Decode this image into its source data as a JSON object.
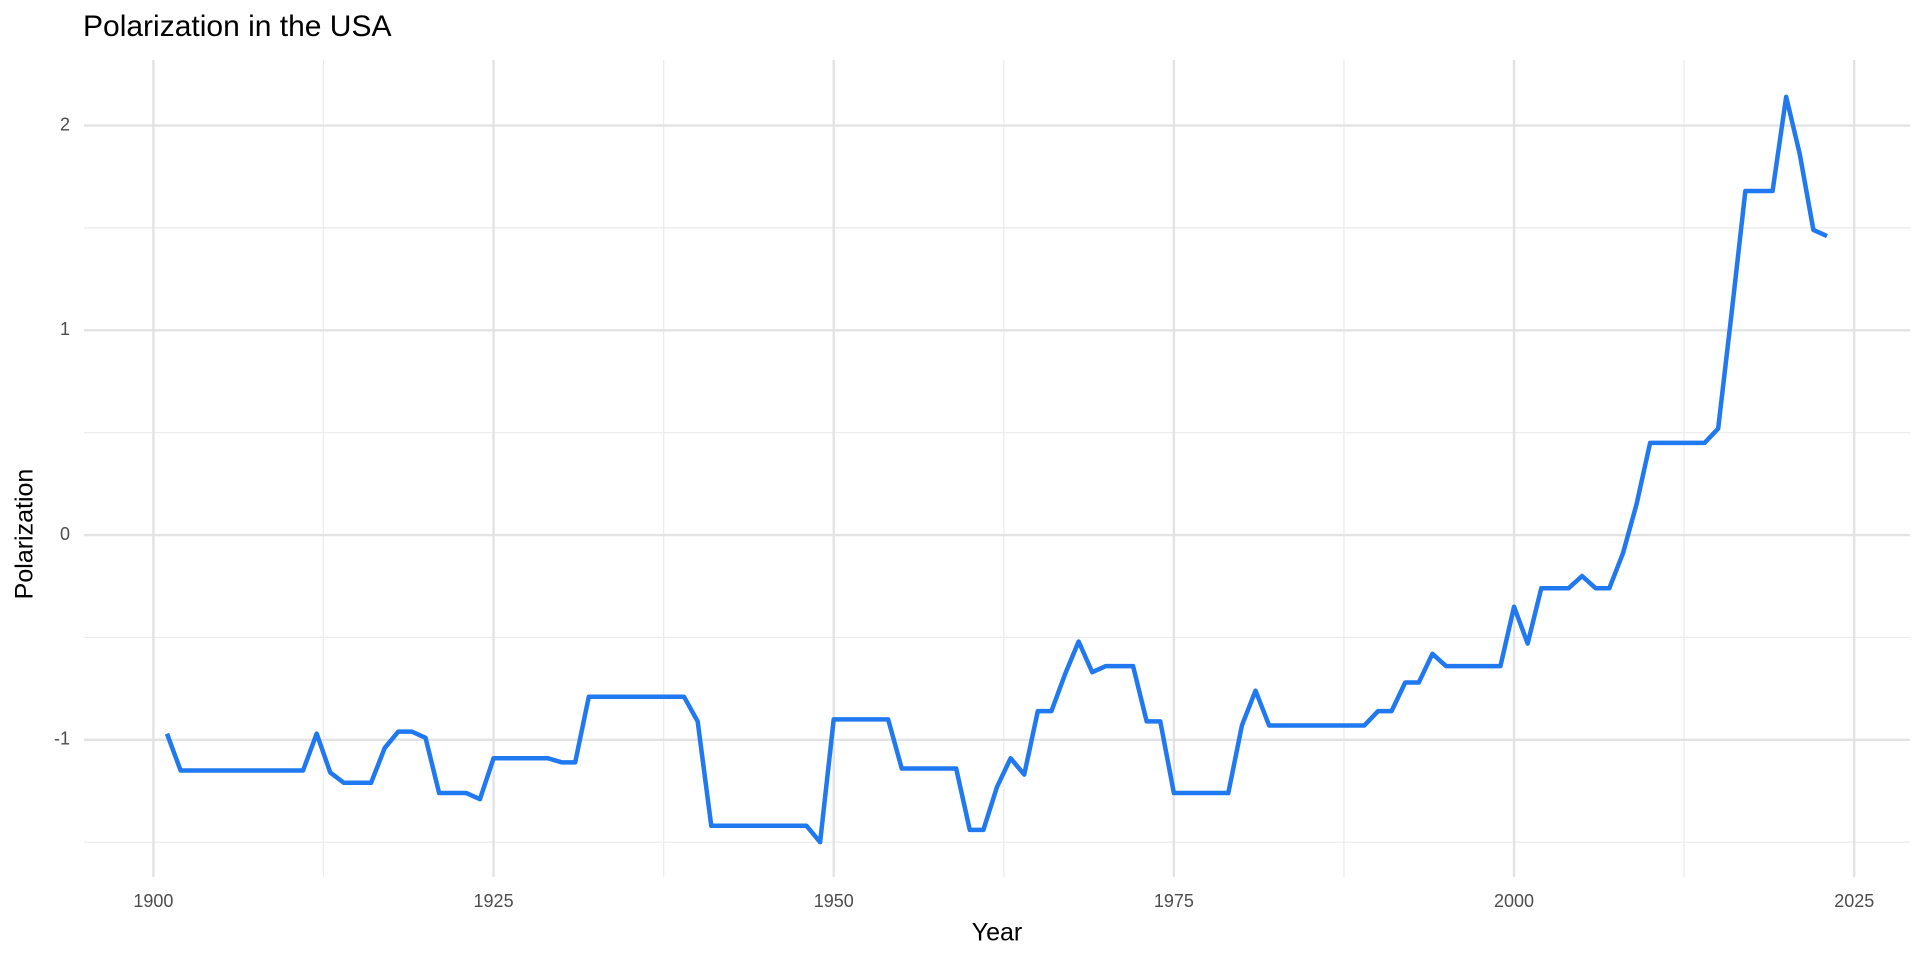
{
  "chart_data": {
    "type": "line",
    "title": "Polarization in the USA",
    "x_label": "Year",
    "y_label": "Polarization",
    "x": [
      1901,
      1902,
      1903,
      1904,
      1905,
      1906,
      1907,
      1908,
      1909,
      1910,
      1911,
      1912,
      1913,
      1914,
      1915,
      1916,
      1917,
      1918,
      1919,
      1920,
      1921,
      1922,
      1923,
      1924,
      1925,
      1926,
      1927,
      1928,
      1929,
      1930,
      1931,
      1932,
      1933,
      1934,
      1935,
      1936,
      1937,
      1938,
      1939,
      1940,
      1941,
      1942,
      1943,
      1944,
      1945,
      1946,
      1947,
      1948,
      1949,
      1950,
      1951,
      1952,
      1953,
      1954,
      1955,
      1956,
      1957,
      1958,
      1959,
      1960,
      1961,
      1962,
      1963,
      1964,
      1965,
      1966,
      1967,
      1968,
      1969,
      1970,
      1971,
      1972,
      1973,
      1974,
      1975,
      1976,
      1977,
      1978,
      1979,
      1980,
      1981,
      1982,
      1983,
      1984,
      1985,
      1986,
      1987,
      1988,
      1989,
      1990,
      1991,
      1992,
      1993,
      1994,
      1995,
      1996,
      1997,
      1998,
      1999,
      2000,
      2001,
      2002,
      2003,
      2004,
      2005,
      2006,
      2007,
      2008,
      2009,
      2010,
      2011,
      2012,
      2013,
      2014,
      2015,
      2016,
      2017,
      2018,
      2019,
      2020,
      2021,
      2022,
      2023
    ],
    "series": [
      {
        "name": "Polarization",
        "color": "#2079f0",
        "values": [
          -0.97,
          -1.15,
          -1.15,
          -1.15,
          -1.15,
          -1.15,
          -1.15,
          -1.15,
          -1.15,
          -1.15,
          -1.15,
          -0.97,
          -1.16,
          -1.21,
          -1.21,
          -1.21,
          -1.04,
          -0.96,
          -0.96,
          -0.99,
          -1.26,
          -1.26,
          -1.26,
          -1.29,
          -1.09,
          -1.09,
          -1.09,
          -1.09,
          -1.09,
          -1.11,
          -1.11,
          -0.79,
          -0.79,
          -0.79,
          -0.79,
          -0.79,
          -0.79,
          -0.79,
          -0.79,
          -0.91,
          -1.42,
          -1.42,
          -1.42,
          -1.42,
          -1.42,
          -1.42,
          -1.42,
          -1.42,
          -1.5,
          -0.9,
          -0.9,
          -0.9,
          -0.9,
          -0.9,
          -1.14,
          -1.14,
          -1.14,
          -1.14,
          -1.14,
          -1.44,
          -1.44,
          -1.23,
          -1.09,
          -1.17,
          -0.86,
          -0.86,
          -0.68,
          -0.52,
          -0.67,
          -0.64,
          -0.64,
          -0.64,
          -0.91,
          -0.91,
          -1.26,
          -1.26,
          -1.26,
          -1.26,
          -1.26,
          -0.93,
          -0.76,
          -0.93,
          -0.93,
          -0.93,
          -0.93,
          -0.93,
          -0.93,
          -0.93,
          -0.93,
          -0.86,
          -0.86,
          -0.72,
          -0.72,
          -0.58,
          -0.64,
          -0.64,
          -0.64,
          -0.64,
          -0.64,
          -0.35,
          -0.53,
          -0.26,
          -0.26,
          -0.26,
          -0.2,
          -0.26,
          -0.26,
          -0.09,
          0.15,
          0.45,
          0.45,
          0.45,
          0.45,
          0.45,
          0.52,
          1.09,
          1.68,
          1.68,
          1.68,
          2.14,
          1.86,
          1.49,
          1.46
        ]
      }
    ],
    "xlim": [
      1894.9,
      2029.1
    ],
    "xticks": [
      1900,
      1925,
      1950,
      1975,
      2000,
      2025
    ],
    "ylim": [
      -1.67,
      2.32
    ],
    "yticks": [
      -1,
      0,
      1,
      2
    ],
    "grid": true
  }
}
